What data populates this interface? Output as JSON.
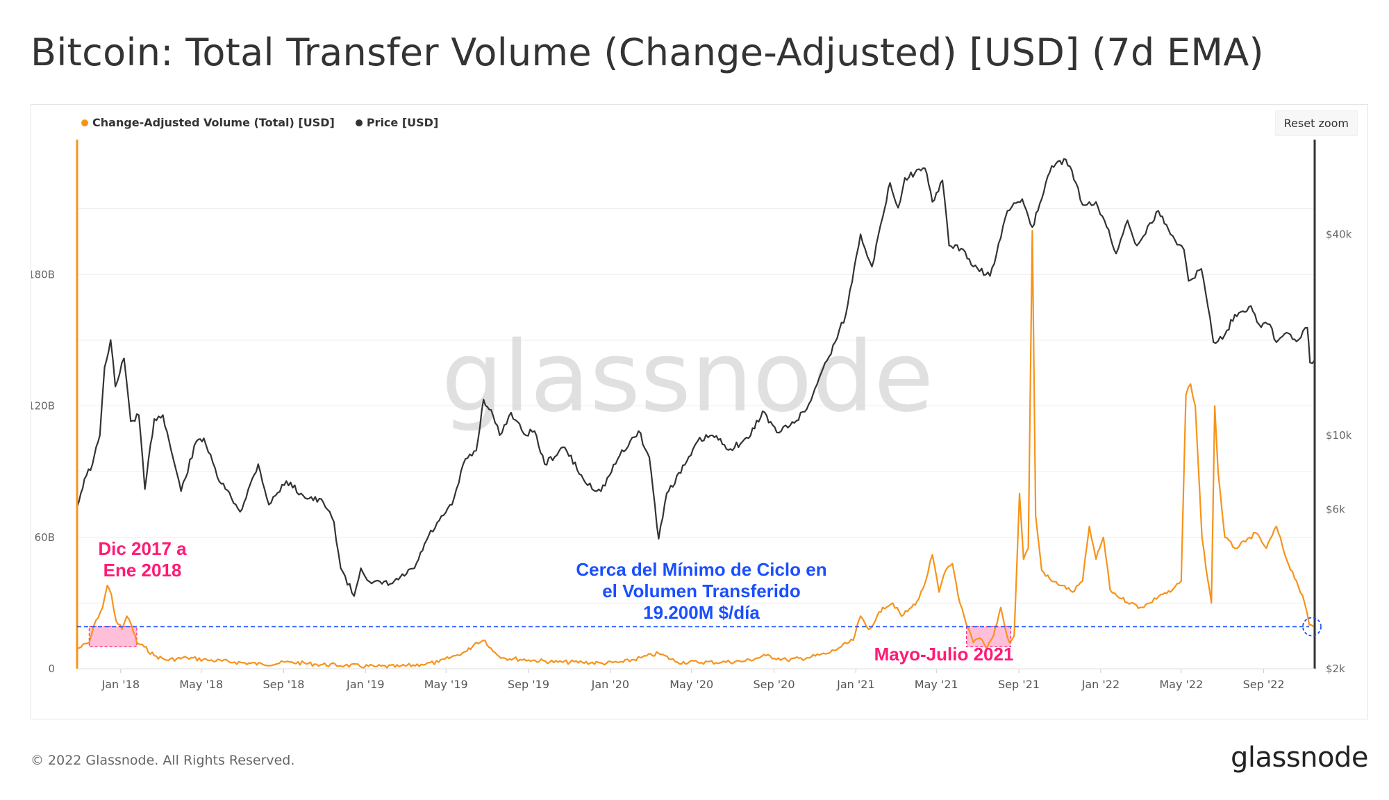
{
  "page": {
    "title": "Bitcoin: Total Transfer Volume (Change-Adjusted) [USD] (7d EMA)",
    "copyright": "© 2022 Glassnode. All Rights Reserved.",
    "logo_text": "glassnode"
  },
  "toolbar": {
    "reset_zoom_label": "Reset zoom"
  },
  "colors": {
    "volume": "#f7931a",
    "price": "#333333",
    "annotation_pink": "#ff1a75",
    "annotation_blue": "#1a4fff",
    "highlight_fill": "#ffb3d1"
  },
  "chart_data": {
    "type": "line",
    "title": "Bitcoin: Total Transfer Volume (Change-Adjusted) [USD] (7d EMA)",
    "watermark": "glassnode",
    "x_tick_labels": [
      "Jan '18",
      "May '18",
      "Sep '18",
      "Jan '19",
      "May '19",
      "Sep '19",
      "Jan '20",
      "May '20",
      "Sep '20",
      "Jan '21",
      "May '21",
      "Sep '21",
      "Jan '22",
      "May '22",
      "Sep '22"
    ],
    "x_range": [
      "2017-10-28",
      "2022-11-16"
    ],
    "left_axis": {
      "ticks": [
        0,
        60,
        120,
        180
      ],
      "tick_labels": [
        "0",
        "60B",
        "120B",
        "180B"
      ],
      "range": [
        0,
        240
      ],
      "unit": "B USD"
    },
    "right_axis": {
      "scale": "log",
      "ticks": [
        2000,
        6000,
        10000,
        40000
      ],
      "tick_labels": [
        "$2k",
        "$6k",
        "$10k",
        "$40k"
      ],
      "range": [
        2000,
        75000
      ]
    },
    "grid": true,
    "legend_position": "top-left",
    "series": [
      {
        "name": "Change-Adjusted Volume (Total) [USD]",
        "axis": "left",
        "color": "#f7931a",
        "points": [
          [
            "2017-10-28",
            9
          ],
          [
            "2017-11-15",
            12
          ],
          [
            "2017-11-25",
            22
          ],
          [
            "2017-12-05",
            28
          ],
          [
            "2017-12-12",
            38
          ],
          [
            "2017-12-18",
            34
          ],
          [
            "2017-12-25",
            22
          ],
          [
            "2018-01-03",
            18
          ],
          [
            "2018-01-10",
            24
          ],
          [
            "2018-01-17",
            20
          ],
          [
            "2018-01-25",
            12
          ],
          [
            "2018-02-05",
            10
          ],
          [
            "2018-02-20",
            6
          ],
          [
            "2018-03-10",
            4
          ],
          [
            "2018-04-10",
            5
          ],
          [
            "2018-05-10",
            4
          ],
          [
            "2018-06-20",
            3
          ],
          [
            "2018-08-01",
            2
          ],
          [
            "2018-09-10",
            3
          ],
          [
            "2018-10-20",
            2
          ],
          [
            "2018-12-01",
            1.5
          ],
          [
            "2019-01-15",
            1
          ],
          [
            "2019-02-20",
            1
          ],
          [
            "2019-03-25",
            2
          ],
          [
            "2019-04-20",
            3
          ],
          [
            "2019-05-15",
            6
          ],
          [
            "2019-06-01",
            8
          ],
          [
            "2019-06-15",
            12
          ],
          [
            "2019-06-28",
            13
          ],
          [
            "2019-07-10",
            8
          ],
          [
            "2019-07-25",
            5
          ],
          [
            "2019-09-01",
            4
          ],
          [
            "2019-10-15",
            3
          ],
          [
            "2019-11-20",
            3
          ],
          [
            "2019-12-20",
            2.5
          ],
          [
            "2020-01-20",
            3
          ],
          [
            "2020-02-15",
            5
          ],
          [
            "2020-03-13",
            7
          ],
          [
            "2020-04-10",
            3
          ],
          [
            "2020-05-10",
            3
          ],
          [
            "2020-06-15",
            3
          ],
          [
            "2020-07-20",
            3.5
          ],
          [
            "2020-08-20",
            6
          ],
          [
            "2020-09-20",
            4
          ],
          [
            "2020-10-20",
            5
          ],
          [
            "2020-11-20",
            7
          ],
          [
            "2020-12-10",
            10
          ],
          [
            "2020-12-28",
            13
          ],
          [
            "2021-01-08",
            24
          ],
          [
            "2021-01-20",
            18
          ],
          [
            "2021-01-30",
            22
          ],
          [
            "2021-02-10",
            28
          ],
          [
            "2021-02-25",
            30
          ],
          [
            "2021-03-10",
            24
          ],
          [
            "2021-03-25",
            28
          ],
          [
            "2021-04-05",
            32
          ],
          [
            "2021-04-15",
            40
          ],
          [
            "2021-04-25",
            52
          ],
          [
            "2021-05-05",
            35
          ],
          [
            "2021-05-15",
            45
          ],
          [
            "2021-05-25",
            48
          ],
          [
            "2021-06-05",
            30
          ],
          [
            "2021-06-15",
            20
          ],
          [
            "2021-06-25",
            12
          ],
          [
            "2021-07-05",
            14
          ],
          [
            "2021-07-15",
            9
          ],
          [
            "2021-07-25",
            15
          ],
          [
            "2021-08-05",
            28
          ],
          [
            "2021-08-12",
            18
          ],
          [
            "2021-08-18",
            12
          ],
          [
            "2021-08-25",
            15
          ],
          [
            "2021-09-02",
            80
          ],
          [
            "2021-09-08",
            50
          ],
          [
            "2021-09-15",
            55
          ],
          [
            "2021-09-21",
            200
          ],
          [
            "2021-09-26",
            70
          ],
          [
            "2021-10-05",
            45
          ],
          [
            "2021-10-20",
            40
          ],
          [
            "2021-11-05",
            38
          ],
          [
            "2021-11-20",
            35
          ],
          [
            "2021-12-05",
            40
          ],
          [
            "2021-12-15",
            65
          ],
          [
            "2021-12-25",
            50
          ],
          [
            "2022-01-05",
            60
          ],
          [
            "2022-01-15",
            36
          ],
          [
            "2022-02-01",
            32
          ],
          [
            "2022-02-15",
            30
          ],
          [
            "2022-03-01",
            28
          ],
          [
            "2022-03-15",
            30
          ],
          [
            "2022-04-01",
            34
          ],
          [
            "2022-04-15",
            35
          ],
          [
            "2022-05-01",
            40
          ],
          [
            "2022-05-08",
            125
          ],
          [
            "2022-05-15",
            130
          ],
          [
            "2022-05-22",
            120
          ],
          [
            "2022-06-01",
            60
          ],
          [
            "2022-06-10",
            40
          ],
          [
            "2022-06-15",
            30
          ],
          [
            "2022-06-20",
            120
          ],
          [
            "2022-06-25",
            90
          ],
          [
            "2022-07-05",
            60
          ],
          [
            "2022-07-20",
            55
          ],
          [
            "2022-08-05",
            58
          ],
          [
            "2022-08-20",
            62
          ],
          [
            "2022-09-05",
            55
          ],
          [
            "2022-09-20",
            65
          ],
          [
            "2022-10-05",
            50
          ],
          [
            "2022-10-20",
            40
          ],
          [
            "2022-11-01",
            30
          ],
          [
            "2022-11-08",
            20
          ],
          [
            "2022-11-16",
            19.2
          ]
        ]
      },
      {
        "name": "Price [USD]",
        "axis": "right",
        "color": "#333333",
        "points": [
          [
            "2017-10-28",
            6100
          ],
          [
            "2017-11-08",
            7400
          ],
          [
            "2017-11-20",
            8200
          ],
          [
            "2017-12-01",
            10000
          ],
          [
            "2017-12-08",
            16000
          ],
          [
            "2017-12-17",
            19300
          ],
          [
            "2017-12-24",
            14000
          ],
          [
            "2018-01-06",
            17000
          ],
          [
            "2018-01-16",
            11000
          ],
          [
            "2018-01-28",
            11500
          ],
          [
            "2018-02-06",
            6900
          ],
          [
            "2018-02-20",
            11200
          ],
          [
            "2018-03-05",
            11500
          ],
          [
            "2018-04-01",
            6800
          ],
          [
            "2018-04-24",
            9600
          ],
          [
            "2018-05-05",
            9800
          ],
          [
            "2018-05-25",
            7500
          ],
          [
            "2018-06-15",
            6500
          ],
          [
            "2018-06-28",
            5900
          ],
          [
            "2018-07-25",
            8200
          ],
          [
            "2018-08-10",
            6200
          ],
          [
            "2018-09-05",
            7300
          ],
          [
            "2018-09-30",
            6600
          ],
          [
            "2018-10-30",
            6300
          ],
          [
            "2018-11-15",
            5500
          ],
          [
            "2018-11-25",
            4000
          ],
          [
            "2018-12-15",
            3300
          ],
          [
            "2018-12-25",
            4000
          ],
          [
            "2019-01-10",
            3600
          ],
          [
            "2019-02-10",
            3600
          ],
          [
            "2019-03-15",
            4000
          ],
          [
            "2019-04-05",
            5000
          ],
          [
            "2019-05-10",
            6200
          ],
          [
            "2019-05-30",
            8500
          ],
          [
            "2019-06-15",
            9000
          ],
          [
            "2019-06-26",
            12800
          ],
          [
            "2019-07-10",
            11500
          ],
          [
            "2019-07-20",
            10000
          ],
          [
            "2019-08-06",
            11700
          ],
          [
            "2019-08-25",
            10100
          ],
          [
            "2019-09-10",
            10300
          ],
          [
            "2019-09-25",
            8200
          ],
          [
            "2019-10-25",
            9200
          ],
          [
            "2019-11-25",
            7200
          ],
          [
            "2019-12-18",
            6800
          ],
          [
            "2020-01-15",
            8700
          ],
          [
            "2020-02-12",
            10300
          ],
          [
            "2020-02-28",
            8600
          ],
          [
            "2020-03-13",
            4900
          ],
          [
            "2020-03-25",
            6700
          ],
          [
            "2020-04-30",
            8700
          ],
          [
            "2020-05-10",
            9600
          ],
          [
            "2020-06-01",
            10000
          ],
          [
            "2020-06-28",
            9100
          ],
          [
            "2020-07-25",
            9800
          ],
          [
            "2020-08-15",
            11800
          ],
          [
            "2020-09-05",
            10200
          ],
          [
            "2020-09-25",
            10700
          ],
          [
            "2020-10-20",
            12000
          ],
          [
            "2020-11-10",
            15300
          ],
          [
            "2020-12-01",
            19000
          ],
          [
            "2020-12-17",
            23000
          ],
          [
            "2021-01-08",
            40000
          ],
          [
            "2021-01-25",
            32000
          ],
          [
            "2021-02-10",
            45000
          ],
          [
            "2021-02-21",
            57000
          ],
          [
            "2021-03-05",
            48000
          ],
          [
            "2021-03-15",
            59000
          ],
          [
            "2021-04-14",
            63000
          ],
          [
            "2021-04-25",
            50000
          ],
          [
            "2021-05-10",
            58000
          ],
          [
            "2021-05-20",
            37000
          ],
          [
            "2021-06-10",
            36000
          ],
          [
            "2021-06-25",
            32000
          ],
          [
            "2021-07-20",
            30000
          ],
          [
            "2021-08-05",
            39000
          ],
          [
            "2021-08-15",
            47000
          ],
          [
            "2021-09-06",
            51000
          ],
          [
            "2021-09-21",
            42000
          ],
          [
            "2021-10-05",
            51000
          ],
          [
            "2021-10-20",
            64000
          ],
          [
            "2021-11-10",
            67000
          ],
          [
            "2021-11-25",
            57000
          ],
          [
            "2021-12-05",
            49000
          ],
          [
            "2021-12-25",
            50000
          ],
          [
            "2022-01-10",
            42000
          ],
          [
            "2022-01-24",
            35000
          ],
          [
            "2022-02-10",
            44000
          ],
          [
            "2022-02-24",
            37000
          ],
          [
            "2022-03-28",
            47000
          ],
          [
            "2022-04-15",
            40000
          ],
          [
            "2022-05-05",
            36000
          ],
          [
            "2022-05-12",
            29000
          ],
          [
            "2022-05-31",
            31500
          ],
          [
            "2022-06-13",
            22500
          ],
          [
            "2022-06-18",
            19000
          ],
          [
            "2022-07-05",
            20000
          ],
          [
            "2022-07-20",
            23000
          ],
          [
            "2022-08-13",
            24400
          ],
          [
            "2022-08-25",
            21500
          ],
          [
            "2022-09-10",
            21500
          ],
          [
            "2022-09-20",
            19000
          ],
          [
            "2022-10-05",
            20300
          ],
          [
            "2022-10-20",
            19100
          ],
          [
            "2022-11-05",
            21000
          ],
          [
            "2022-11-09",
            16500
          ],
          [
            "2022-11-16",
            16800
          ]
        ]
      }
    ],
    "annotations": [
      {
        "id": "dec2017",
        "text_lines": [
          "Dic 2017 a",
          "Ene 2018"
        ],
        "color": "#ff1a75",
        "highlight": [
          "2017-11-15",
          "2018-01-25"
        ],
        "highlight_y": [
          10,
          19.2
        ]
      },
      {
        "id": "cycle_low",
        "text_lines": [
          "Cerca del Mínimo de Ciclo en",
          "el Volumen Transferido",
          "19.200M $/día"
        ],
        "color": "#1a4fff",
        "hline_value": 19.2
      },
      {
        "id": "mayjul2021",
        "text_lines": [
          "Mayo-Julio 2021"
        ],
        "color": "#ff1a75",
        "highlight": [
          "2021-06-15",
          "2021-08-20"
        ],
        "highlight_y": [
          10,
          19.2
        ]
      }
    ]
  }
}
